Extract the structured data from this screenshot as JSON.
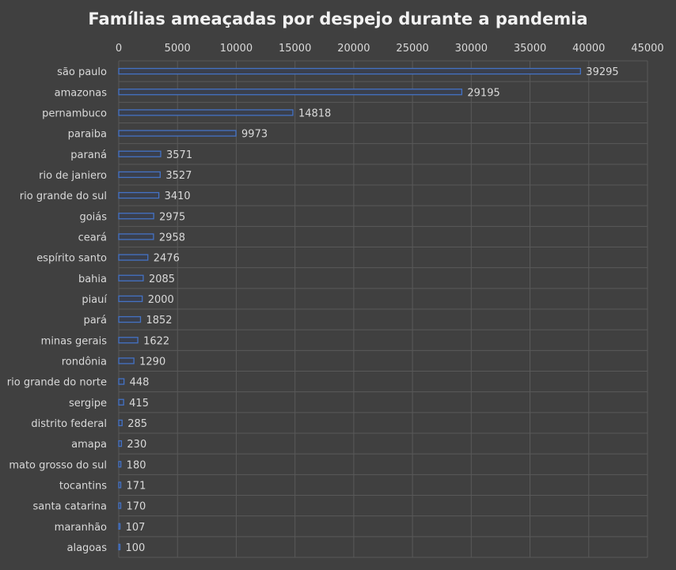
{
  "chart_data": {
    "type": "bar",
    "orientation": "horizontal",
    "title": "Famílias ameaçadas por despejo durante a pandemia",
    "xlabel": "",
    "ylabel": "",
    "xlim": [
      0,
      45000
    ],
    "x_ticks": [
      0,
      5000,
      10000,
      15000,
      20000,
      25000,
      30000,
      35000,
      40000,
      45000
    ],
    "x_axis_position": "top",
    "grid": true,
    "legend": "none",
    "categories": [
      "são paulo",
      "amazonas",
      "pernambuco",
      "paraiba",
      "paraná",
      "rio de janiero",
      "rio grande do sul",
      "goiás",
      "ceará",
      "espírito santo",
      "bahia",
      "piauí",
      "pará",
      "minas gerais",
      "rondônia",
      "rio grande do norte",
      "sergipe",
      "distrito federal",
      "amapa",
      "mato grosso do sul",
      "tocantins",
      "santa catarina",
      "maranhão",
      "alagoas"
    ],
    "values": [
      39295,
      29195,
      14818,
      9973,
      3571,
      3527,
      3410,
      2975,
      2958,
      2476,
      2085,
      2000,
      1852,
      1622,
      1290,
      448,
      415,
      285,
      230,
      180,
      171,
      170,
      107,
      100
    ],
    "colors": {
      "background": "#404040",
      "bar_fill": "#3a3f4c",
      "bar_stroke": "#4472c4",
      "grid": "#595959",
      "text": "#d9d9d9",
      "title": "#f2f2f2"
    }
  }
}
